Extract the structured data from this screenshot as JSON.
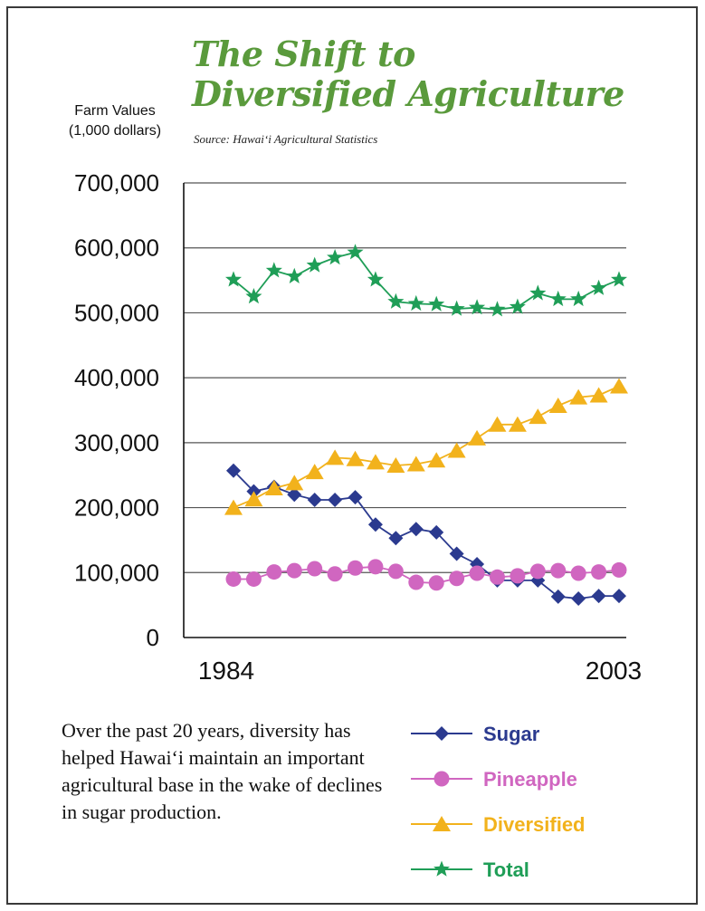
{
  "title_lines": [
    "The Shift to",
    "Diversified Agriculture"
  ],
  "source": "Source: Hawai‘i Agricultural Statistics",
  "ylabel_lines": [
    "Farm Values",
    "(1,000 dollars)"
  ],
  "caption": "Over the past 20 years, diversity has helped Hawai‘i maintain an important agricultural base in the wake of declines in sugar production.",
  "colors": {
    "title": "#5a9a3c",
    "sugar": "#2b3a8f",
    "pineapple": "#d066c0",
    "diversified": "#f2b21c",
    "total": "#1f9e57",
    "grid": "#555555"
  },
  "legend": [
    {
      "key": "sugar",
      "label": "Sugar",
      "marker": "diamond"
    },
    {
      "key": "pineapple",
      "label": "Pineapple",
      "marker": "circle"
    },
    {
      "key": "diversified",
      "label": "Diversified",
      "marker": "triangle"
    },
    {
      "key": "total",
      "label": "Total",
      "marker": "star"
    }
  ],
  "chart_data": {
    "type": "line",
    "x": [
      1984,
      1985,
      1986,
      1987,
      1988,
      1989,
      1990,
      1991,
      1992,
      1993,
      1994,
      1995,
      1996,
      1997,
      1998,
      1999,
      2000,
      2001,
      2002,
      2003
    ],
    "x_tick_labels": [
      "1984",
      "2003"
    ],
    "ylim": [
      0,
      700000
    ],
    "y_ticks": [
      0,
      100000,
      200000,
      300000,
      400000,
      500000,
      600000,
      700000
    ],
    "y_tick_labels": [
      "0",
      "100,000",
      "200,000",
      "300,000",
      "400,000",
      "500,000",
      "600,000",
      "700,000"
    ],
    "grid": true,
    "legend_position": "bottom-right",
    "series": [
      {
        "name": "Sugar",
        "key": "sugar",
        "marker": "diamond",
        "values": [
          257000,
          225000,
          232000,
          220000,
          212000,
          212000,
          216000,
          174000,
          153000,
          167000,
          162000,
          129000,
          113000,
          88000,
          88000,
          88000,
          63000,
          60000,
          64000,
          64000
        ]
      },
      {
        "name": "Pineapple",
        "key": "pineapple",
        "marker": "circle",
        "values": [
          90000,
          90000,
          101000,
          103000,
          106000,
          98000,
          107000,
          109000,
          102000,
          85000,
          84000,
          91000,
          99000,
          93000,
          95000,
          102000,
          103000,
          99000,
          101000,
          104000
        ]
      },
      {
        "name": "Diversified",
        "key": "diversified",
        "marker": "triangle",
        "values": [
          200000,
          213000,
          230000,
          238000,
          255000,
          277000,
          275000,
          270000,
          265000,
          267000,
          273000,
          288000,
          307000,
          328000,
          328000,
          340000,
          357000,
          370000,
          373000,
          387000
        ]
      },
      {
        "name": "Total",
        "key": "total",
        "marker": "star",
        "values": [
          551000,
          525000,
          565000,
          556000,
          573000,
          585000,
          593000,
          551000,
          517000,
          514000,
          513000,
          506000,
          508000,
          505000,
          509000,
          530000,
          521000,
          521000,
          538000,
          551000
        ]
      }
    ]
  }
}
